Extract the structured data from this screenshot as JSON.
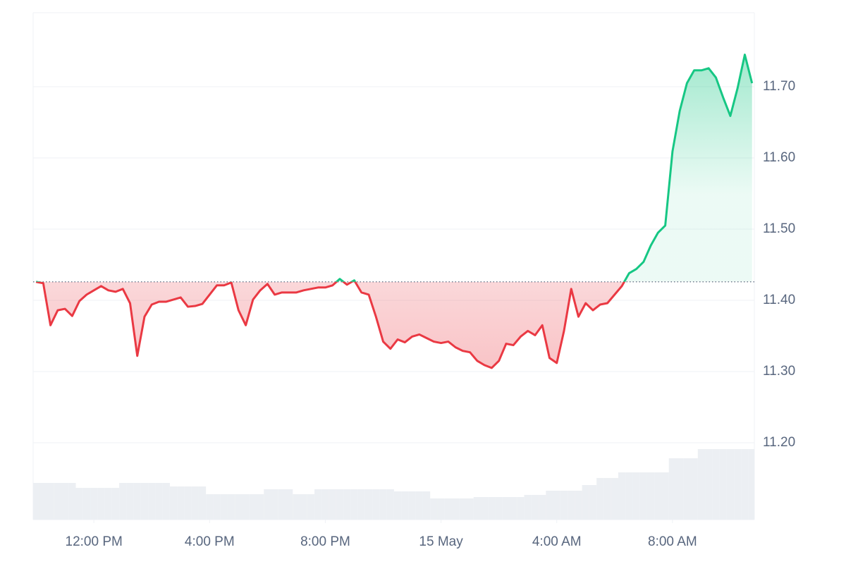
{
  "chart_data": {
    "type": "line",
    "x": [
      10,
      10.25,
      10.5,
      10.75,
      11,
      11.25,
      11.5,
      11.75,
      12,
      12.25,
      12.5,
      12.75,
      13,
      13.25,
      13.5,
      13.75,
      14,
      14.25,
      14.5,
      14.75,
      15,
      15.25,
      15.5,
      15.75,
      16,
      16.25,
      16.5,
      16.75,
      17,
      17.25,
      17.5,
      17.75,
      18,
      18.25,
      18.5,
      18.75,
      19,
      19.25,
      19.5,
      19.75,
      20,
      20.25,
      20.5,
      20.75,
      21,
      21.25,
      21.5,
      21.75,
      22,
      22.25,
      22.5,
      22.75,
      23,
      23.25,
      23.5,
      23.75,
      24,
      24.25,
      24.5,
      24.75,
      25,
      25.25,
      25.5,
      25.75,
      26,
      26.25,
      26.5,
      26.75,
      27,
      27.25,
      27.5,
      27.75,
      28,
      28.25,
      28.5,
      28.75,
      29,
      29.25,
      29.5,
      29.75,
      30,
      30.25,
      30.5,
      30.75,
      31,
      31.25,
      31.5,
      31.75,
      32,
      32.25,
      32.5,
      32.75,
      33,
      33.25,
      33.5,
      33.75,
      34,
      34.25,
      34.5,
      34.75
    ],
    "series": [
      {
        "values": [
          11.426,
          11.424,
          11.365,
          11.386,
          11.388,
          11.378,
          11.399,
          11.408,
          11.414,
          11.42,
          11.414,
          11.412,
          11.416,
          11.396,
          11.322,
          11.377,
          11.394,
          11.398,
          11.398,
          11.401,
          11.404,
          11.391,
          11.392,
          11.395,
          11.408,
          11.421,
          11.421,
          11.425,
          11.386,
          11.365,
          11.401,
          11.414,
          11.423,
          11.408,
          11.411,
          11.411,
          11.411,
          11.414,
          11.416,
          11.418,
          11.418,
          11.421,
          11.43,
          11.422,
          11.428,
          11.411,
          11.408,
          11.377,
          11.342,
          11.332,
          11.345,
          11.341,
          11.349,
          11.352,
          11.347,
          11.342,
          11.34,
          11.342,
          11.334,
          11.329,
          11.327,
          11.315,
          11.309,
          11.305,
          11.315,
          11.339,
          11.337,
          11.349,
          11.357,
          11.351,
          11.365,
          11.319,
          11.312,
          11.357,
          11.416,
          11.377,
          11.396,
          11.386,
          11.394,
          11.396,
          11.408,
          11.42,
          11.438,
          11.444,
          11.454,
          11.477,
          11.495,
          11.505,
          11.609,
          11.666,
          11.705,
          11.723,
          11.723,
          11.726,
          11.713,
          11.685,
          11.659,
          11.698,
          11.745,
          11.705
        ]
      }
    ],
    "volume": [
      52,
      52,
      52,
      52,
      52,
      52,
      45,
      45,
      45,
      45,
      45,
      45,
      52,
      52,
      52,
      52,
      52,
      52,
      52,
      47,
      47,
      47,
      47,
      47,
      36,
      36,
      36,
      36,
      36,
      36,
      36,
      36,
      43,
      43,
      43,
      43,
      36,
      36,
      36,
      43,
      43,
      43,
      43,
      43,
      43,
      43,
      43,
      43,
      43,
      43,
      40,
      40,
      40,
      40,
      40,
      30,
      30,
      30,
      30,
      30,
      30,
      32,
      32,
      32,
      32,
      32,
      32,
      32,
      35,
      35,
      35,
      41,
      41,
      41,
      41,
      41,
      49,
      49,
      59,
      59,
      59,
      67,
      67,
      67,
      67,
      67,
      67,
      67,
      87,
      87,
      87,
      87,
      100,
      100,
      100,
      100,
      100,
      100,
      100,
      100
    ],
    "baseline": 11.426,
    "up_color": "#16c784",
    "down_color": "#ea3943",
    "volume_color": "#eceff3",
    "xlim": [
      9.9,
      34.83
    ],
    "xticks": [
      {
        "value": 12,
        "label": "12:00 PM"
      },
      {
        "value": 16,
        "label": "4:00 PM"
      },
      {
        "value": 20,
        "label": "8:00 PM"
      },
      {
        "value": 24,
        "label": "15 May"
      },
      {
        "value": 28,
        "label": "4:00 AM"
      },
      {
        "value": 32,
        "label": "8:00 AM"
      }
    ],
    "ylim": [
      11.092,
      11.804
    ],
    "yticks": [
      {
        "value": 11.2,
        "label": "11.20"
      },
      {
        "value": 11.3,
        "label": "11.30"
      },
      {
        "value": 11.4,
        "label": "11.40"
      },
      {
        "value": 11.5,
        "label": "11.50"
      },
      {
        "value": 11.6,
        "label": "11.60"
      },
      {
        "value": 11.7,
        "label": "11.70"
      }
    ],
    "grid": true
  }
}
